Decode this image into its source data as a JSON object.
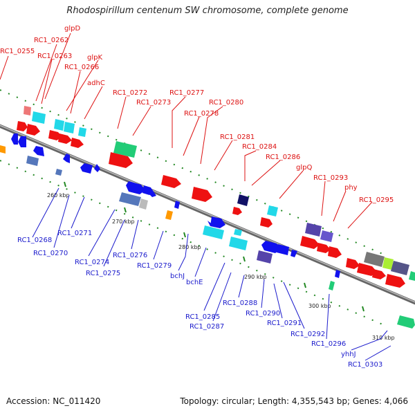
{
  "title": "Rhodospirillum centenum SW chromosome, complete genome",
  "footer": {
    "accession": "Accession: NC_011420",
    "topology": "Topology: circular; Length: 4,355,543 bp; Genes: 4,066"
  },
  "ticks": [
    "260 kbp",
    "270 kbp",
    "280 kbp",
    "290 kbp",
    "300 kbp",
    "310 kbp"
  ],
  "labels_top": [
    "RC1_0255",
    "glpD",
    "RC1_0262",
    "RC1_0263",
    "glpK",
    "RC1_0266",
    "adhC",
    "RC1_0272",
    "RC1_0273",
    "RC1_0277",
    "RC1_0278",
    "RC1_0280",
    "RC1_0281",
    "RC1_0284",
    "RC1_0286",
    "glpQ",
    "RC1_0293",
    "phy",
    "RC1_0295"
  ],
  "labels_bottom": [
    "RC1_0268",
    "RC1_0270",
    "RC1_0271",
    "RC1_0274",
    "RC1_0275",
    "RC1_0276",
    "RC1_0279",
    "bchJ",
    "bchE",
    "RC1_0285",
    "RC1_0287",
    "RC1_0288",
    "RC1_0290",
    "RC1_0291",
    "RC1_0292",
    "RC1_0296",
    "yhhJ",
    "RC1_0303"
  ],
  "colors": {
    "red": "#ee1111",
    "cyan": "#22e0ee",
    "blue": "#1111ee",
    "slate": "#5577bb",
    "navy": "#111166",
    "purple": "#5544aa",
    "green": "#22cc77",
    "orange": "#ff9900",
    "pink": "#ee7777",
    "gray": "#777777",
    "lime": "#aaee33",
    "label_top": "#dd1111",
    "label_bottom": "#1a1acc"
  }
}
